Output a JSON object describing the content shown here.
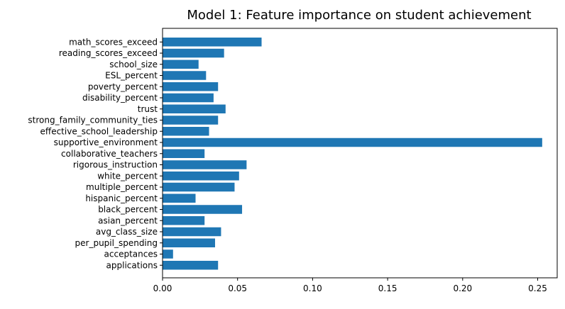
{
  "chart_data": {
    "type": "bar",
    "orientation": "horizontal",
    "title": "Model 1: Feature importance on student achievement",
    "xlabel": "",
    "ylabel": "",
    "xlim": [
      0,
      0.263
    ],
    "x_ticks": [
      "0.00",
      "0.05",
      "0.10",
      "0.15",
      "0.20",
      "0.25"
    ],
    "x_tick_values": [
      0,
      0.05,
      0.1,
      0.15,
      0.2,
      0.25
    ],
    "grid": false,
    "legend": "none",
    "bar_color": "#1f77b4",
    "categories": [
      "math_scores_exceed",
      "reading_scores_exceed",
      "school_size",
      "ESL_percent",
      "poverty_percent",
      "disability_percent",
      "trust",
      "strong_family_community_ties",
      "effective_school_leadership",
      "supportive_environment",
      "collaborative_teachers",
      "rigorous_instruction",
      "white_percent",
      "multiple_percent",
      "hispanic_percent",
      "black_percent",
      "asian_percent",
      "avg_class_size",
      "per_pupil_spending",
      "acceptances",
      "applications"
    ],
    "values": [
      0.066,
      0.041,
      0.024,
      0.029,
      0.037,
      0.034,
      0.042,
      0.037,
      0.031,
      0.253,
      0.028,
      0.056,
      0.051,
      0.048,
      0.022,
      0.053,
      0.028,
      0.039,
      0.035,
      0.007,
      0.037
    ]
  }
}
